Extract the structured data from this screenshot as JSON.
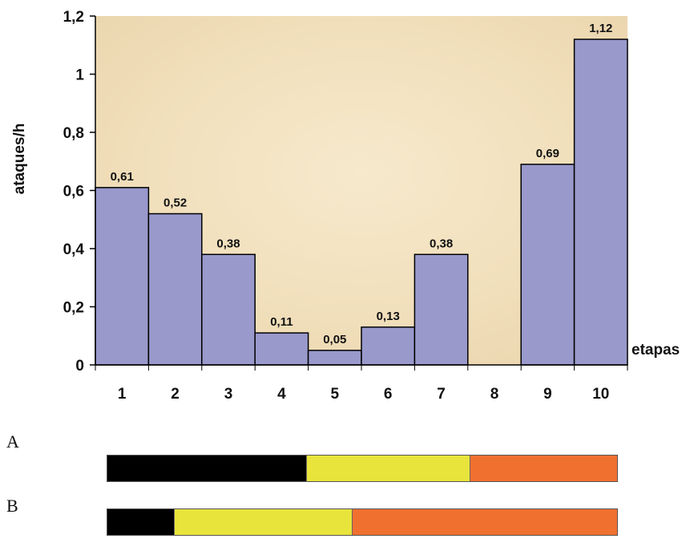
{
  "chart_data": {
    "type": "bar",
    "categories": [
      "1",
      "2",
      "3",
      "4",
      "5",
      "6",
      "7",
      "8",
      "9",
      "10"
    ],
    "values": [
      0.61,
      0.52,
      0.38,
      0.11,
      0.05,
      0.13,
      0.38,
      null,
      0.69,
      1.12
    ],
    "value_labels": [
      "0,61",
      "0,52",
      "0,38",
      "0,11",
      "0,05",
      "0,13",
      "0,38",
      "",
      "0,69",
      "1,12"
    ],
    "title": "",
    "xlabel": "etapas",
    "ylabel": "ataques/h",
    "ylim": [
      0,
      1.2
    ],
    "yticks": [
      0,
      0.2,
      0.4,
      0.6,
      0.8,
      1.0,
      1.2
    ],
    "ytick_labels": [
      "0",
      "0,2",
      "0,4",
      "0,6",
      "0,8",
      "1",
      "1,2"
    ],
    "grid": false,
    "bar_color": "#9999cc",
    "plot_background": "#f2e2c0"
  },
  "panels": [
    {
      "label": "A",
      "segments": [
        {
          "color": "#000000",
          "fraction": 0.39
        },
        {
          "color": "#e8e43c",
          "fraction": 0.32
        },
        {
          "color": "#f07030",
          "fraction": 0.29
        }
      ]
    },
    {
      "label": "B",
      "segments": [
        {
          "color": "#000000",
          "fraction": 0.13
        },
        {
          "color": "#e8e43c",
          "fraction": 0.35
        },
        {
          "color": "#f07030",
          "fraction": 0.52
        }
      ]
    }
  ]
}
